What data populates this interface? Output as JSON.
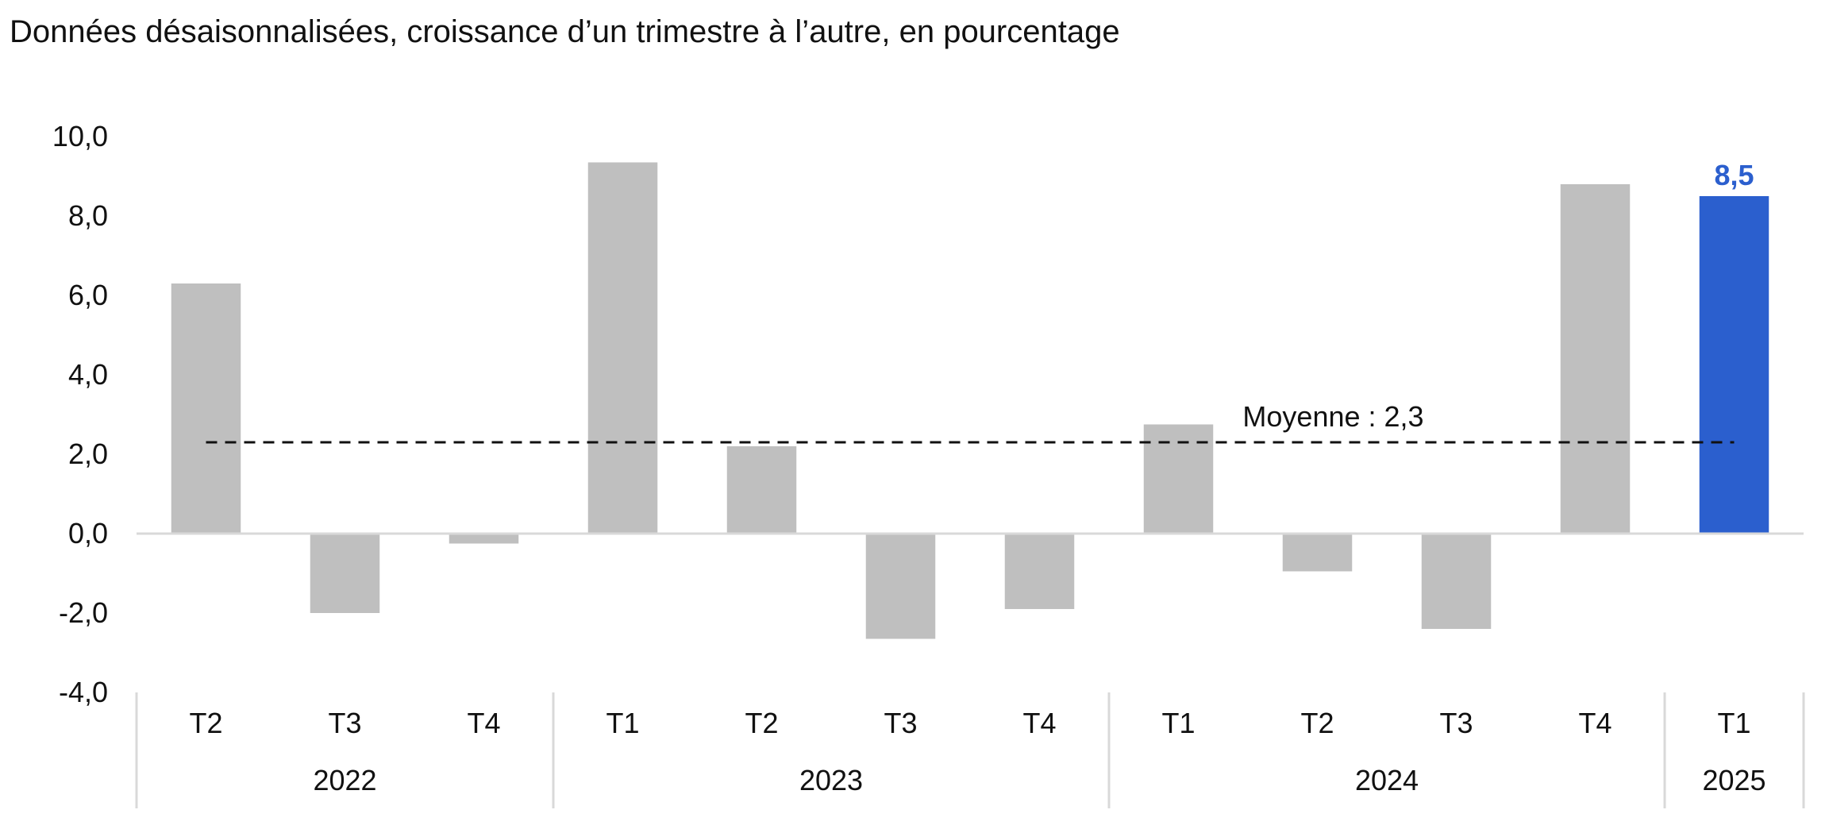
{
  "chart_data": {
    "type": "bar",
    "title": "Données désaisonnalisées, croissance d’un trimestre à l’autre, en pourcentage",
    "categories": [
      "T2",
      "T3",
      "T4",
      "T1",
      "T2",
      "T3",
      "T4",
      "T1",
      "T2",
      "T3",
      "T4",
      "T1"
    ],
    "years": [
      {
        "label": "2022",
        "count": 3
      },
      {
        "label": "2023",
        "count": 4
      },
      {
        "label": "2024",
        "count": 4
      },
      {
        "label": "2025",
        "count": 1
      }
    ],
    "values": [
      6.3,
      -2.0,
      -0.25,
      9.35,
      2.2,
      -2.65,
      -1.9,
      2.75,
      -0.95,
      -2.4,
      8.8,
      8.5
    ],
    "highlight_index": 11,
    "highlight_label": "8,5",
    "average": {
      "value": 2.3,
      "label": "Moyenne : 2,3",
      "style": "dashed"
    },
    "ylim": [
      -4,
      10
    ],
    "yticks": [
      10,
      8,
      6,
      4,
      2,
      0,
      -2,
      -4
    ],
    "ytick_labels": [
      "10,0",
      "8,0",
      "6,0",
      "4,0",
      "2,0",
      "0,0",
      "-2,0",
      "-4,0"
    ],
    "xlabel": "",
    "ylabel": "",
    "grid": false,
    "colors": {
      "bar": "#bfbfbf",
      "highlight": "#2b5fce",
      "axis": "#d9d9d9",
      "average": "#111111"
    }
  }
}
